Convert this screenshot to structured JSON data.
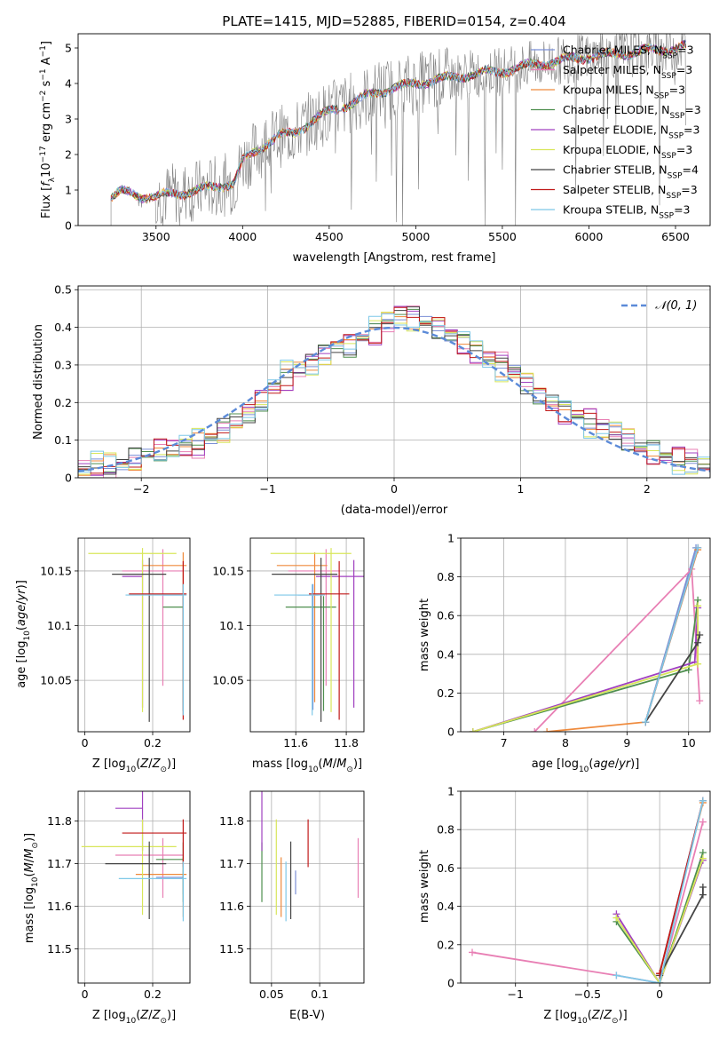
{
  "figure": {
    "title": "PLATE=1415, MJD=52885, FIBERID=0154, z=0.404"
  },
  "colors": {
    "data": "#808080",
    "normal": "#5b8ad8",
    "grid": "#b0b0b0",
    "Chabrier MILES": "#7b8fd6",
    "Salpeter MILES": "#e87fb4",
    "Kroupa MILES": "#ef8a3c",
    "Chabrier ELODIE": "#4f8f4f",
    "Salpeter ELODIE": "#a040c0",
    "Kroupa ELODIE": "#d8e65a",
    "Chabrier STELIB": "#444444",
    "Salpeter STELIB": "#c01818",
    "Kroupa STELIB": "#7ec8e8"
  },
  "chart_data": [
    {
      "id": "spectrum",
      "type": "line",
      "xlabel": "wavelength [Angstrom, rest frame]",
      "ylabel_parts": [
        "Flux [",
        "f",
        "λ",
        "10",
        "−17",
        " erg cm",
        "−2",
        " s",
        "−1",
        " A",
        "−1",
        "]"
      ],
      "xlim": [
        3050,
        6700
      ],
      "ylim": [
        0,
        5.4
      ],
      "xticks": [
        3500,
        4000,
        4500,
        5000,
        5500,
        6000,
        6500
      ],
      "yticks": [
        0,
        1,
        2,
        3,
        4,
        5
      ],
      "legend": [
        {
          "label": "Chabrier MILES",
          "nssp": "3"
        },
        {
          "label": "Salpeter MILES",
          "nssp": "3"
        },
        {
          "label": "Kroupa MILES",
          "nssp": "3"
        },
        {
          "label": "Chabrier ELODIE",
          "nssp": "3"
        },
        {
          "label": "Salpeter ELODIE",
          "nssp": "3"
        },
        {
          "label": "Kroupa ELODIE",
          "nssp": "3"
        },
        {
          "label": "Chabrier STELIB",
          "nssp": "4"
        },
        {
          "label": "Salpeter STELIB",
          "nssp": "3"
        },
        {
          "label": "Kroupa STELIB",
          "nssp": "3"
        }
      ],
      "legend_loc": "right",
      "nssp_sub": "SSP",
      "nssp_prefix": "N",
      "continuum": [
        [
          3240,
          0.8
        ],
        [
          3300,
          0.95
        ],
        [
          3400,
          0.85
        ],
        [
          3500,
          0.8
        ],
        [
          3600,
          0.9
        ],
        [
          3700,
          0.95
        ],
        [
          3800,
          1.05
        ],
        [
          3900,
          1.15
        ],
        [
          3950,
          1.2
        ],
        [
          4000,
          1.8
        ],
        [
          4100,
          2.2
        ],
        [
          4200,
          2.5
        ],
        [
          4300,
          2.6
        ],
        [
          4400,
          2.95
        ],
        [
          4500,
          3.2
        ],
        [
          4600,
          3.4
        ],
        [
          4700,
          3.6
        ],
        [
          4800,
          3.8
        ],
        [
          4900,
          3.9
        ],
        [
          5000,
          4.0
        ],
        [
          5100,
          4.1
        ],
        [
          5200,
          4.15
        ],
        [
          5300,
          4.25
        ],
        [
          5400,
          4.3
        ],
        [
          5500,
          4.35
        ],
        [
          5600,
          4.45
        ],
        [
          5700,
          4.55
        ],
        [
          5800,
          4.6
        ],
        [
          5900,
          4.7
        ],
        [
          6000,
          4.75
        ],
        [
          6100,
          4.8
        ],
        [
          6200,
          4.85
        ],
        [
          6300,
          4.9
        ],
        [
          6400,
          4.95
        ],
        [
          6500,
          5.0
        ],
        [
          6560,
          5.05
        ]
      ]
    },
    {
      "id": "residuals",
      "type": "line",
      "xlabel": "(data-model)/error",
      "ylabel": "Normed distribution",
      "xlim": [
        -2.5,
        2.5
      ],
      "ylim": [
        0,
        0.51
      ],
      "xticks": [
        -2,
        -1,
        0,
        1,
        2
      ],
      "yticks": [
        0.0,
        0.1,
        0.2,
        0.3,
        0.4,
        0.5
      ],
      "grid": true,
      "legend_label": "𝒩(0, 1)",
      "legend_loc": "upper right",
      "histogram_centers": [
        -2.45,
        -2.35,
        -2.25,
        -2.15,
        -2.05,
        -1.95,
        -1.85,
        -1.75,
        -1.65,
        -1.55,
        -1.45,
        -1.35,
        -1.25,
        -1.15,
        -1.05,
        -0.95,
        -0.85,
        -0.75,
        -0.65,
        -0.55,
        -0.45,
        -0.35,
        -0.25,
        -0.15,
        -0.05,
        0.05,
        0.15,
        0.25,
        0.35,
        0.45,
        0.55,
        0.65,
        0.75,
        0.85,
        0.95,
        1.05,
        1.15,
        1.25,
        1.35,
        1.45,
        1.55,
        1.65,
        1.75,
        1.85,
        1.95,
        2.05,
        2.15,
        2.25,
        2.35,
        2.45
      ],
      "histogram_values": [
        0.02,
        0.03,
        0.03,
        0.04,
        0.05,
        0.06,
        0.07,
        0.07,
        0.08,
        0.09,
        0.11,
        0.13,
        0.15,
        0.17,
        0.2,
        0.24,
        0.27,
        0.29,
        0.31,
        0.33,
        0.35,
        0.35,
        0.37,
        0.39,
        0.42,
        0.44,
        0.43,
        0.41,
        0.4,
        0.38,
        0.36,
        0.34,
        0.32,
        0.3,
        0.28,
        0.25,
        0.22,
        0.2,
        0.18,
        0.17,
        0.15,
        0.13,
        0.12,
        0.1,
        0.08,
        0.07,
        0.06,
        0.05,
        0.04,
        0.03
      ],
      "series_offsets": [
        0.0,
        0.02,
        -0.015,
        0.01,
        -0.02,
        0.025,
        -0.01,
        0.015,
        -0.025
      ]
    },
    {
      "id": "age-vs-z",
      "type": "scatter",
      "xlabel_parts": [
        "Z [log",
        "10",
        "(",
        "Z",
        "/",
        "Z",
        "⊙",
        ")]"
      ],
      "ylabel_parts": [
        "age  [log",
        "10",
        "(",
        "age",
        "/",
        "yr",
        ")]"
      ],
      "xlim": [
        -0.02,
        0.31
      ],
      "ylim": [
        10.003,
        10.18
      ],
      "xticks": [
        0.0,
        0.2
      ],
      "yticks": [
        10.05,
        10.1,
        10.15
      ],
      "grid": true
    },
    {
      "id": "age-vs-mass",
      "type": "scatter",
      "xlabel_parts": [
        "mass [log",
        "10",
        "(",
        "M",
        "/",
        "M",
        "⊙",
        ")]"
      ],
      "xlim": [
        11.42,
        11.87
      ],
      "ylim": [
        10.003,
        10.18
      ],
      "xticks": [
        11.6,
        11.8
      ],
      "yticks": [
        10.05,
        10.1,
        10.15
      ],
      "grid": true
    },
    {
      "id": "weight-vs-age",
      "type": "line",
      "xlabel_parts": [
        "age  [log",
        "10",
        "(",
        "age",
        "/",
        "yr",
        ")]"
      ],
      "ylabel": "mass weight",
      "xlim": [
        6.3,
        10.35
      ],
      "ylim": [
        0,
        1.0
      ],
      "xticks": [
        7,
        8,
        9,
        10
      ],
      "yticks": [
        0.0,
        0.2,
        0.4,
        0.6,
        0.8,
        1.0
      ],
      "grid": true
    },
    {
      "id": "mass-vs-z",
      "type": "scatter",
      "xlabel_parts": [
        "Z [log",
        "10",
        "(",
        "Z",
        "/",
        "Z",
        "⊙",
        ")]"
      ],
      "ylabel_parts": [
        "mass [log",
        "10",
        "(",
        "M",
        "/",
        "M",
        "⊙",
        ")]"
      ],
      "xlim": [
        -0.02,
        0.31
      ],
      "ylim": [
        11.42,
        11.87
      ],
      "xticks": [
        0.0,
        0.2
      ],
      "yticks": [
        11.5,
        11.6,
        11.7,
        11.8
      ],
      "grid": true
    },
    {
      "id": "mass-vs-ebv",
      "type": "scatter",
      "xlabel": "E(B-V)",
      "xlim": [
        0.028,
        0.146
      ],
      "ylim": [
        11.42,
        11.87
      ],
      "xticks": [
        0.05,
        0.1
      ],
      "yticks": [
        11.5,
        11.6,
        11.7,
        11.8
      ],
      "grid": true
    },
    {
      "id": "weight-vs-z",
      "type": "line",
      "xlabel_parts": [
        "Z [log",
        "10",
        "(",
        "Z",
        "/",
        "Z",
        "⊙",
        ")]"
      ],
      "ylabel": "mass weight",
      "xlim": [
        -1.38,
        0.35
      ],
      "ylim": [
        0,
        1.0
      ],
      "xticks": [
        -1.0,
        -0.5,
        0.0
      ],
      "yticks": [
        0.0,
        0.2,
        0.4,
        0.6,
        0.8,
        1.0
      ],
      "grid": true
    }
  ],
  "fits": [
    {
      "name": "Chabrier MILES",
      "z": 0.29,
      "z_err": 0.0,
      "age": 10.128,
      "age_err_lo": 0.105,
      "age_err_hi": 0.01,
      "mass": 11.668,
      "mass_err": 0.04,
      "ebv": 0.075,
      "age_w": [
        [
          9.3,
          0.05
        ],
        [
          10.12,
          0.95
        ]
      ],
      "z_w": [
        [
          0.0,
          0.05
        ],
        [
          0.3,
          0.95
        ]
      ]
    },
    {
      "name": "Salpeter MILES",
      "z": 0.23,
      "z_err": 0.06,
      "age": 10.15,
      "age_err_lo": 0.105,
      "age_err_hi": 0.02,
      "mass": 11.72,
      "mass_err": 0.1,
      "ebv": 0.14,
      "age_w": [
        [
          7.5,
          0.0
        ],
        [
          10.05,
          0.84
        ],
        [
          10.18,
          0.16
        ]
      ],
      "z_w": [
        [
          -1.3,
          0.16
        ],
        [
          -0.3,
          0.04
        ],
        [
          0.0,
          0.0
        ],
        [
          0.3,
          0.84
        ]
      ]
    },
    {
      "name": "Kroupa MILES",
      "z": 0.29,
      "z_err": 0.06,
      "age": 10.155,
      "age_err_lo": 0.125,
      "age_err_hi": 0.012,
      "mass": 11.675,
      "mass_err": 0.1,
      "ebv": 0.06,
      "age_w": [
        [
          7.7,
          0.0
        ],
        [
          9.3,
          0.05
        ],
        [
          10.15,
          0.94
        ]
      ],
      "z_w": [
        [
          0.0,
          0.05
        ],
        [
          0.3,
          0.94
        ]
      ]
    },
    {
      "name": "Chabrier ELODIE",
      "z": 0.29,
      "z_err": 0.0,
      "age": 10.117,
      "age_err_lo": 0.095,
      "age_err_hi": 0.01,
      "mass": 11.71,
      "mass_err": 0.1,
      "ebv": 0.04,
      "age_w": [
        [
          6.5,
          0.0
        ],
        [
          10.0,
          0.32
        ],
        [
          10.15,
          0.68
        ]
      ],
      "z_w": [
        [
          -0.3,
          0.32
        ],
        [
          0.0,
          0.0
        ],
        [
          0.3,
          0.68
        ]
      ]
    },
    {
      "name": "Salpeter ELODIE",
      "z": 0.17,
      "z_err": 0.0,
      "age": 10.145,
      "age_err_lo": 0.12,
      "age_err_hi": 0.015,
      "mass": 11.83,
      "mass_err": 0.1,
      "ebv": 0.04,
      "age_w": [
        [
          6.5,
          0.0
        ],
        [
          10.1,
          0.36
        ],
        [
          10.15,
          0.64
        ]
      ],
      "z_w": [
        [
          -0.3,
          0.36
        ],
        [
          0.0,
          0.0
        ],
        [
          0.3,
          0.64
        ]
      ]
    },
    {
      "name": "Kroupa ELODIE",
      "z": 0.17,
      "z_err": 0.1,
      "age": 10.166,
      "age_err_lo": 0.145,
      "age_err_hi": 0.005,
      "mass": 11.74,
      "mass_err": 0.16,
      "ebv": 0.055,
      "age_w": [
        [
          6.5,
          0.0
        ],
        [
          10.15,
          0.35
        ],
        [
          10.15,
          0.65
        ]
      ],
      "z_w": [
        [
          -0.3,
          0.34
        ],
        [
          0.0,
          0.0
        ],
        [
          0.3,
          0.65
        ]
      ]
    },
    {
      "name": "Chabrier STELIB",
      "z": 0.19,
      "z_err": 0.05,
      "age": 10.147,
      "age_err_lo": 0.135,
      "age_err_hi": 0.015,
      "mass": 11.7,
      "mass_err": 0.13,
      "ebv": 0.07,
      "age_w": [
        [
          9.3,
          0.05
        ],
        [
          10.15,
          0.46
        ],
        [
          10.18,
          0.5
        ]
      ],
      "z_w": [
        [
          0.0,
          0.04
        ],
        [
          0.3,
          0.46
        ],
        [
          0.3,
          0.5
        ]
      ]
    },
    {
      "name": "Salpeter STELIB",
      "z": 0.29,
      "z_err": 0.1,
      "age": 10.129,
      "age_err_lo": 0.115,
      "age_err_hi": 0.03,
      "mass": 11.772,
      "mass_err": 0.08,
      "ebv": 0.088,
      "age_w": [
        [
          9.3,
          0.05
        ],
        [
          10.15,
          0.95
        ]
      ],
      "z_w": [
        [
          0.0,
          0.05
        ],
        [
          0.3,
          0.95
        ]
      ]
    },
    {
      "name": "Kroupa STELIB",
      "z": 0.29,
      "z_err": 0.11,
      "age": 10.128,
      "age_err_lo": 0.11,
      "age_err_hi": 0.01,
      "mass": 11.665,
      "mass_err": 0.1,
      "ebv": 0.065,
      "age_w": [
        [
          9.3,
          0.05
        ],
        [
          10.15,
          0.95
        ]
      ],
      "z_w": [
        [
          -0.3,
          0.04
        ],
        [
          0.0,
          0.0
        ],
        [
          0.3,
          0.95
        ]
      ]
    }
  ]
}
